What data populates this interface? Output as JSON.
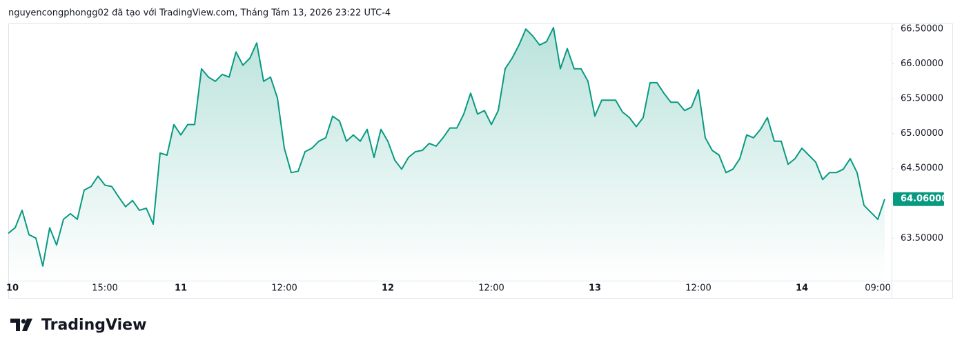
{
  "chart_data": {
    "type": "area",
    "title": "nguyencongphongg02 đã tạo với TradingView.com, Tháng Tám 13, 2026 23:22 UTC-4",
    "logo_text": "TradingView",
    "categories": [
      "10",
      null,
      null,
      null,
      null,
      null,
      null,
      null,
      null,
      null,
      null,
      null,
      null,
      null,
      "15:00",
      null,
      null,
      null,
      null,
      null,
      null,
      null,
      null,
      null,
      null,
      "11",
      null,
      null,
      null,
      null,
      null,
      null,
      null,
      null,
      null,
      null,
      null,
      null,
      null,
      null,
      "12:00",
      null,
      null,
      null,
      null,
      null,
      null,
      null,
      null,
      null,
      null,
      null,
      null,
      null,
      null,
      "12",
      null,
      null,
      null,
      null,
      null,
      null,
      null,
      null,
      null,
      null,
      null,
      null,
      null,
      null,
      "12:00",
      null,
      null,
      null,
      null,
      null,
      null,
      null,
      null,
      null,
      null,
      null,
      null,
      null,
      null,
      "13",
      null,
      null,
      null,
      null,
      null,
      null,
      null,
      null,
      null,
      null,
      null,
      null,
      null,
      null,
      "12:00",
      null,
      null,
      null,
      null,
      null,
      null,
      null,
      null,
      null,
      null,
      null,
      null,
      null,
      null,
      "14",
      null,
      null,
      null,
      null,
      null,
      null,
      null,
      null,
      null,
      null,
      "09:00",
      null
    ],
    "series": [
      {
        "color": "#089981",
        "values": [
          63.57,
          63.65,
          63.9,
          63.55,
          63.5,
          63.1,
          63.65,
          63.4,
          63.77,
          63.85,
          63.77,
          64.19,
          64.24,
          64.39,
          64.26,
          64.24,
          64.09,
          63.95,
          64.04,
          63.9,
          63.93,
          63.7,
          64.72,
          64.69,
          65.13,
          64.98,
          65.13,
          65.13,
          65.93,
          65.81,
          65.75,
          65.85,
          65.81,
          66.17,
          65.98,
          66.08,
          66.3,
          65.75,
          65.81,
          65.51,
          64.79,
          64.44,
          64.46,
          64.74,
          64.79,
          64.89,
          64.94,
          65.25,
          65.18,
          64.89,
          64.98,
          64.89,
          65.06,
          64.66,
          65.06,
          64.89,
          64.62,
          64.49,
          64.66,
          64.74,
          64.76,
          64.86,
          64.82,
          64.94,
          65.08,
          65.08,
          65.28,
          65.58,
          65.28,
          65.33,
          65.13,
          65.33,
          65.93,
          66.08,
          66.27,
          66.5,
          66.4,
          66.27,
          66.32,
          66.52,
          65.93,
          66.22,
          65.93,
          65.93,
          65.75,
          65.25,
          65.48,
          65.48,
          65.48,
          65.31,
          65.23,
          65.1,
          65.23,
          65.73,
          65.73,
          65.58,
          65.45,
          65.45,
          65.33,
          65.38,
          65.63,
          64.94,
          64.76,
          64.69,
          64.44,
          64.49,
          64.64,
          64.98,
          64.94,
          65.06,
          65.23,
          64.89,
          64.89,
          64.56,
          64.64,
          64.79,
          64.69,
          64.59,
          64.34,
          64.44,
          64.44,
          64.49,
          64.64,
          64.44,
          63.97,
          63.87,
          63.77,
          64.06
        ]
      }
    ],
    "last_value_label": "64.06000",
    "ylim": [
      62.88,
      66.57
    ],
    "yticks": [
      {
        "value": 63.5,
        "label": "63.50000"
      },
      {
        "value": 64.5,
        "label": "64.50000"
      },
      {
        "value": 65,
        "label": "65.00000"
      },
      {
        "value": 65.5,
        "label": "65.50000"
      },
      {
        "value": 66,
        "label": "66.00000"
      },
      {
        "value": 66.5,
        "label": "66.50000"
      }
    ]
  }
}
